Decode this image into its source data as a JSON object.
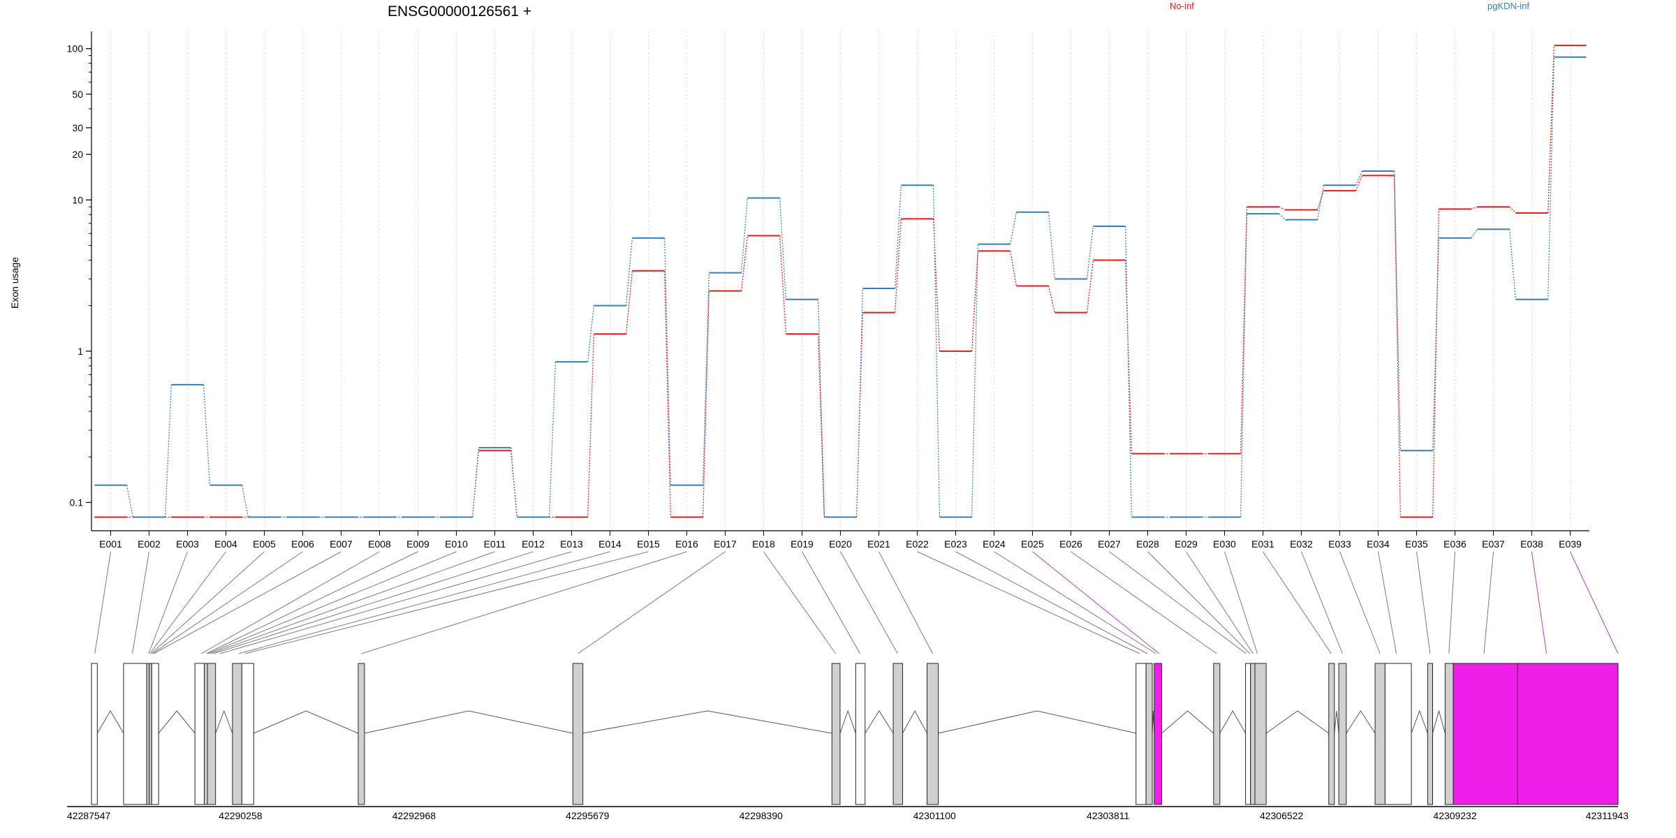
{
  "title": "ENSG00000126561 +",
  "legend": [
    {
      "name": "No-inf",
      "color": "#e41a1c"
    },
    {
      "name": "pgKDN-inf",
      "color": "#377eb8"
    }
  ],
  "colors": {
    "no_inf": "#e41a1c",
    "pgkdn_inf": "#377eb8",
    "exon_fill": "#d0d0d0",
    "highlight_fill": "#f01ee9",
    "connector": "#7a7a7a",
    "highlight_connector": "#b040c0"
  },
  "chart_data": {
    "type": "line",
    "ylabel": "Exon usage",
    "yscale": "log",
    "ylim": [
      0.065,
      130
    ],
    "yticks": [
      0.1,
      1,
      10,
      20,
      30,
      50,
      100
    ],
    "ytick_labels": [
      "0.1",
      "1",
      "10",
      "20",
      "30",
      "50",
      "100"
    ],
    "grid": "vertical dotted",
    "categories": [
      "E001",
      "E002",
      "E003",
      "E004",
      "E005",
      "E006",
      "E007",
      "E008",
      "E009",
      "E010",
      "E011",
      "E012",
      "E013",
      "E014",
      "E015",
      "E016",
      "E017",
      "E018",
      "E019",
      "E020",
      "E021",
      "E022",
      "E023",
      "E024",
      "E025",
      "E026",
      "E027",
      "E028",
      "E029",
      "E030",
      "E031",
      "E032",
      "E033",
      "E034",
      "E035",
      "E036",
      "E037",
      "E038",
      "E039"
    ],
    "series": [
      {
        "name": "No-inf",
        "values": [
          0.08,
          0.08,
          0.08,
          0.08,
          0.08,
          0.08,
          0.08,
          0.08,
          0.08,
          0.08,
          0.22,
          0.08,
          0.08,
          1.3,
          3.4,
          0.08,
          2.5,
          5.8,
          1.3,
          0.08,
          1.8,
          7.5,
          1.0,
          4.6,
          2.7,
          1.8,
          4.0,
          0.21,
          0.21,
          0.21,
          9.0,
          8.6,
          11.5,
          14.5,
          0.08,
          8.7,
          9.0,
          8.2,
          105
        ]
      },
      {
        "name": "pgKDN-inf",
        "values": [
          0.13,
          0.08,
          0.6,
          0.13,
          0.08,
          0.08,
          0.08,
          0.08,
          0.08,
          0.08,
          0.23,
          0.08,
          0.85,
          2.0,
          5.6,
          0.13,
          3.3,
          10.3,
          2.2,
          0.08,
          2.6,
          12.5,
          0.08,
          5.1,
          8.3,
          3.0,
          6.7,
          0.08,
          0.08,
          0.08,
          8.1,
          7.4,
          12.5,
          15.5,
          0.22,
          5.6,
          6.4,
          2.2,
          88
        ]
      }
    ]
  },
  "gene_model": {
    "genomic_ticks": [
      "42287547",
      "42290258",
      "42292968",
      "42295679",
      "42298390",
      "42301100",
      "42303811",
      "42306522",
      "42309232",
      "42311943"
    ],
    "start": 42287547,
    "end": 42311943,
    "exons": [
      {
        "start": 42287547,
        "end": 42287640,
        "shade": "white"
      },
      {
        "start": 42288060,
        "end": 42288430,
        "shade": "white"
      },
      {
        "start": 42288430,
        "end": 42288470,
        "shade": "gray"
      },
      {
        "start": 42288470,
        "end": 42288510,
        "shade": "gray"
      },
      {
        "start": 42288510,
        "end": 42288620,
        "shade": "white"
      },
      {
        "start": 42289200,
        "end": 42289350,
        "shade": "white"
      },
      {
        "start": 42289350,
        "end": 42289400,
        "shade": "gray"
      },
      {
        "start": 42289400,
        "end": 42289530,
        "shade": "gray"
      },
      {
        "start": 42289800,
        "end": 42289950,
        "shade": "gray"
      },
      {
        "start": 42289950,
        "end": 42290140,
        "shade": "white"
      },
      {
        "start": 42291810,
        "end": 42291910,
        "shade": "gray"
      },
      {
        "start": 42295240,
        "end": 42295400,
        "shade": "gray"
      },
      {
        "start": 42299380,
        "end": 42299510,
        "shade": "gray"
      },
      {
        "start": 42299760,
        "end": 42299910,
        "shade": "white"
      },
      {
        "start": 42300360,
        "end": 42300510,
        "shade": "gray"
      },
      {
        "start": 42300900,
        "end": 42301080,
        "shade": "gray"
      },
      {
        "start": 42304240,
        "end": 42304400,
        "shade": "white"
      },
      {
        "start": 42304400,
        "end": 42304500,
        "shade": "gray"
      },
      {
        "start": 42304530,
        "end": 42304650,
        "shade": "magenta"
      },
      {
        "start": 42305480,
        "end": 42305580,
        "shade": "gray"
      },
      {
        "start": 42305990,
        "end": 42306070,
        "shade": "white"
      },
      {
        "start": 42306070,
        "end": 42306140,
        "shade": "gray"
      },
      {
        "start": 42306140,
        "end": 42306320,
        "shade": "gray"
      },
      {
        "start": 42307320,
        "end": 42307410,
        "shade": "gray"
      },
      {
        "start": 42307480,
        "end": 42307600,
        "shade": "gray"
      },
      {
        "start": 42308060,
        "end": 42308220,
        "shade": "gray"
      },
      {
        "start": 42308220,
        "end": 42308640,
        "shade": "white"
      },
      {
        "start": 42308900,
        "end": 42308980,
        "shade": "gray"
      },
      {
        "start": 42309180,
        "end": 42309310,
        "shade": "gray"
      },
      {
        "start": 42309310,
        "end": 42310340,
        "shade": "magenta"
      },
      {
        "start": 42310340,
        "end": 42311943,
        "shade": "magenta"
      }
    ],
    "bin_targets": [
      42287600,
      42288200,
      42288460,
      42288480,
      42288500,
      42288520,
      42288540,
      42289300,
      42289380,
      42289410,
      42289450,
      42289500,
      42289600,
      42289900,
      42290000,
      42291860,
      42295320,
      42299440,
      42299830,
      42300430,
      42300990,
      42304300,
      42304420,
      42304560,
      42304610,
      42305530,
      42306000,
      42306060,
      42306110,
      42306180,
      42307360,
      42307540,
      42308140,
      42308400,
      42308940,
      42309240,
      42309800,
      42310800,
      42311943
    ],
    "highlight_bins": [
      24,
      37,
      38
    ]
  }
}
